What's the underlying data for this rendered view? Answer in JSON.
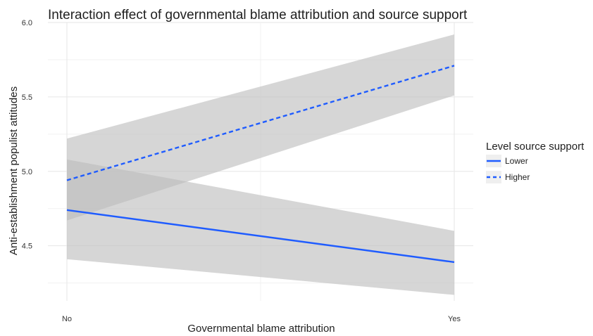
{
  "chart_data": {
    "type": "line",
    "title": "Interaction effect of governmental blame attribution and source support",
    "xlabel": "Governmental blame attribution",
    "ylabel": "Anti-establishment populist attitudes",
    "categories": [
      "No",
      "Yes"
    ],
    "ylim": [
      4.13,
      6.0
    ],
    "y_ticks": [
      "4.5",
      "5.0",
      "5.5",
      "6.0"
    ],
    "grid": true,
    "legend": {
      "title": "Level source support",
      "position": "right"
    },
    "series": [
      {
        "name": "Lower",
        "values": [
          4.74,
          4.39
        ],
        "ci_lower": [
          4.41,
          4.17
        ],
        "ci_upper": [
          5.08,
          4.6
        ],
        "color": "#1f5cff",
        "line_style": "solid"
      },
      {
        "name": "Higher",
        "values": [
          4.94,
          5.71
        ],
        "ci_lower": [
          4.67,
          5.51
        ],
        "ci_upper": [
          5.22,
          5.92
        ],
        "color": "#1f5cff",
        "line_style": "dashed"
      }
    ],
    "ci_color": "#bdbdbd"
  }
}
